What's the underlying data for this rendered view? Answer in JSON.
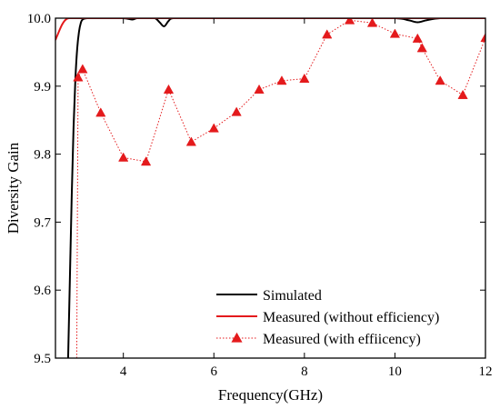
{
  "chart_data": {
    "type": "line",
    "xlabel": "Frequency(GHz)",
    "ylabel": "Diversity Gain",
    "xlim": [
      2.5,
      12
    ],
    "ylim": [
      9.5,
      10.0
    ],
    "xticks": [
      4,
      6,
      8,
      10,
      12
    ],
    "xtick_labels": [
      "4",
      "6",
      "8",
      "10",
      "12"
    ],
    "yticks": [
      9.5,
      9.6,
      9.7,
      9.8,
      9.9,
      10.0
    ],
    "ytick_labels": [
      "9.5",
      "9.6",
      "9.7",
      "9.8",
      "9.9",
      "10.0"
    ],
    "grid": false,
    "legend_position": "bottom-right",
    "series": [
      {
        "name": "Simulated",
        "color": "#000000",
        "style": "solid",
        "marker": "none",
        "x": [
          2.78,
          2.82,
          2.86,
          2.9,
          2.94,
          2.98,
          3.02,
          3.06,
          3.1,
          3.2,
          3.5,
          4.0,
          4.2,
          4.3,
          4.5,
          4.7,
          4.8,
          4.9,
          5.0,
          5.1,
          5.5,
          6.0,
          7.0,
          8.0,
          9.0,
          10.0,
          10.3,
          10.5,
          10.7,
          11.0,
          11.5,
          12.0
        ],
        "y": [
          9.5,
          9.62,
          9.74,
          9.84,
          9.91,
          9.955,
          9.98,
          9.993,
          9.998,
          10.0,
          10.0,
          10.0,
          9.998,
          10.0,
          10.0,
          10.0,
          9.994,
          9.988,
          9.996,
          10.0,
          10.0,
          10.0,
          10.0,
          10.0,
          10.0,
          10.0,
          9.997,
          9.994,
          9.997,
          10.0,
          10.0,
          10.0
        ]
      },
      {
        "name": "Measured (without efficiency)",
        "color": "#e41a1c",
        "style": "solid",
        "marker": "none",
        "x": [
          2.5,
          2.55,
          2.6,
          2.65,
          2.7,
          2.75,
          2.8,
          2.9,
          3.0,
          4.0,
          6.0,
          8.0,
          10.0,
          12.0
        ],
        "y": [
          9.968,
          9.976,
          9.984,
          9.991,
          9.996,
          9.999,
          10.0,
          10.0,
          10.0,
          10.0,
          10.0,
          10.0,
          10.0,
          10.0
        ]
      },
      {
        "name": "Measured (with effiicency)",
        "color": "#e41a1c",
        "style": "dotted",
        "marker": "triangle",
        "drop_start": [
          2.97,
          9.5
        ],
        "x": [
          3.0,
          3.1,
          3.5,
          4.0,
          4.5,
          5.0,
          5.5,
          6.0,
          6.5,
          7.0,
          7.5,
          8.0,
          8.5,
          9.0,
          9.5,
          10.0,
          10.5,
          10.6,
          11.0,
          11.5,
          12.0
        ],
        "y": [
          9.913,
          9.925,
          9.861,
          9.795,
          9.789,
          9.895,
          9.818,
          9.838,
          9.862,
          9.895,
          9.908,
          9.911,
          9.976,
          9.997,
          9.993,
          9.977,
          9.97,
          9.956,
          9.908,
          9.887,
          9.971
        ]
      }
    ]
  }
}
